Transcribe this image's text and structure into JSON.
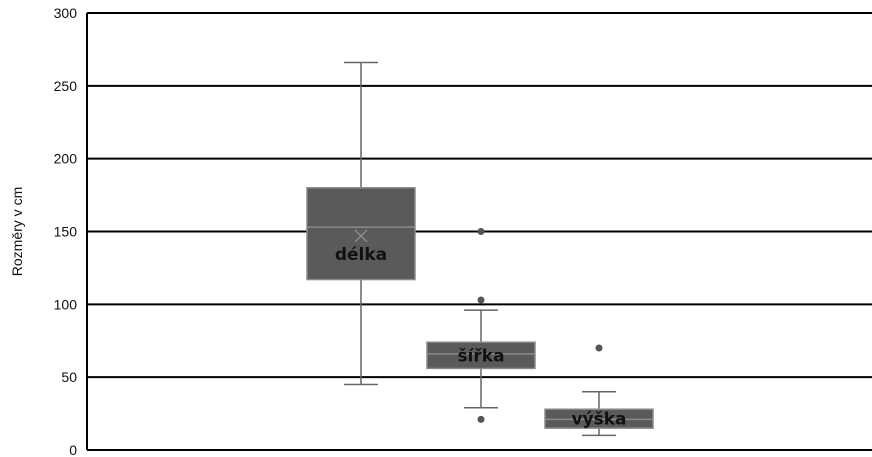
{
  "chart_data": {
    "type": "box",
    "ylabel": "Rozměry v cm",
    "ylim": [
      0,
      300
    ],
    "yticks": [
      0,
      50,
      100,
      150,
      200,
      250,
      300
    ],
    "grid": true,
    "box_color": "#5a5a5a",
    "box_edge_color": "#8a8a8a",
    "line_color": "#000000",
    "boxes": [
      {
        "label": "délka",
        "min": 45,
        "q1": 117,
        "median": 153,
        "q3": 180,
        "max": 266,
        "mean": 147,
        "outliers": []
      },
      {
        "label": "šířka",
        "min": 29,
        "q1": 56,
        "median": 66,
        "q3": 74,
        "max": 96,
        "outliers": [
          150,
          103,
          21
        ]
      },
      {
        "label": "výška",
        "min": 10,
        "q1": 15,
        "median": 21,
        "q3": 28,
        "max": 40,
        "outliers": [
          70
        ]
      }
    ]
  }
}
